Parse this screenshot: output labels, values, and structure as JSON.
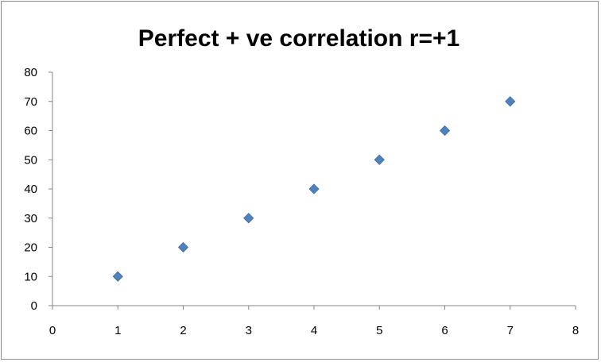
{
  "chart_data": {
    "type": "scatter",
    "title": "Perfect  + ve correlation r=+1",
    "xlabel": "",
    "ylabel": "",
    "xlim": [
      0,
      8
    ],
    "ylim": [
      0,
      80
    ],
    "x_ticks": [
      0,
      1,
      2,
      3,
      4,
      5,
      6,
      7,
      8
    ],
    "y_ticks": [
      0,
      10,
      20,
      30,
      40,
      50,
      60,
      70,
      80
    ],
    "grid": false,
    "legend": "none",
    "marker": "diamond",
    "series": [
      {
        "points": [
          {
            "x": 1,
            "y": 10
          },
          {
            "x": 2,
            "y": 20
          },
          {
            "x": 3,
            "y": 30
          },
          {
            "x": 4,
            "y": 40
          },
          {
            "x": 5,
            "y": 50
          },
          {
            "x": 6,
            "y": 60
          },
          {
            "x": 7,
            "y": 70
          }
        ],
        "color": "#4f81bd"
      }
    ]
  }
}
